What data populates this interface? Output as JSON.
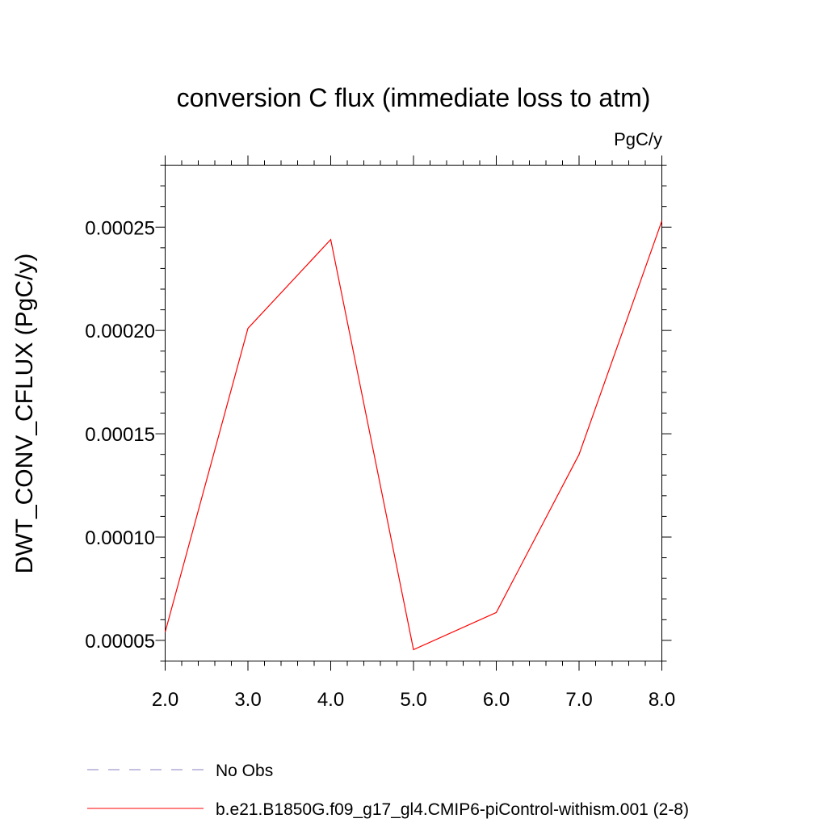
{
  "chart_data": {
    "type": "line",
    "title": "conversion C flux (immediate loss to atm)",
    "units": "PgC/y",
    "ylabel": "DWT_CONV_CFLUX  (PgC/y)",
    "xlabel": "",
    "xlim": [
      2.0,
      8.0
    ],
    "ylim": [
      4e-05,
      0.00028
    ],
    "x_ticks": [
      "2.0",
      "3.0",
      "4.0",
      "5.0",
      "6.0",
      "7.0",
      "8.0"
    ],
    "y_ticks": [
      "0.00005",
      "0.00010",
      "0.00015",
      "0.00020",
      "0.00025"
    ],
    "series": [
      {
        "name": "b.e21.B1850G.f09_g17_gl4.CMIP6-piControl-withism.001 (2-8)",
        "color": "#ff0000",
        "x": [
          2.0,
          3.0,
          4.0,
          5.0,
          6.0,
          7.0,
          8.0
        ],
        "y": [
          5.4e-05,
          0.000201,
          0.000244,
          4.55e-05,
          6.35e-05,
          0.00014,
          0.000253
        ]
      }
    ],
    "legend": {
      "position": "bottom",
      "entries": [
        {
          "label": "No Obs",
          "color": "#8a80c0",
          "style": "dashed"
        },
        {
          "label": "b.e21.B1850G.f09_g17_gl4.CMIP6-piControl-withism.001 (2-8)",
          "color": "#ff0000",
          "style": "solid"
        }
      ]
    },
    "grid": false
  }
}
